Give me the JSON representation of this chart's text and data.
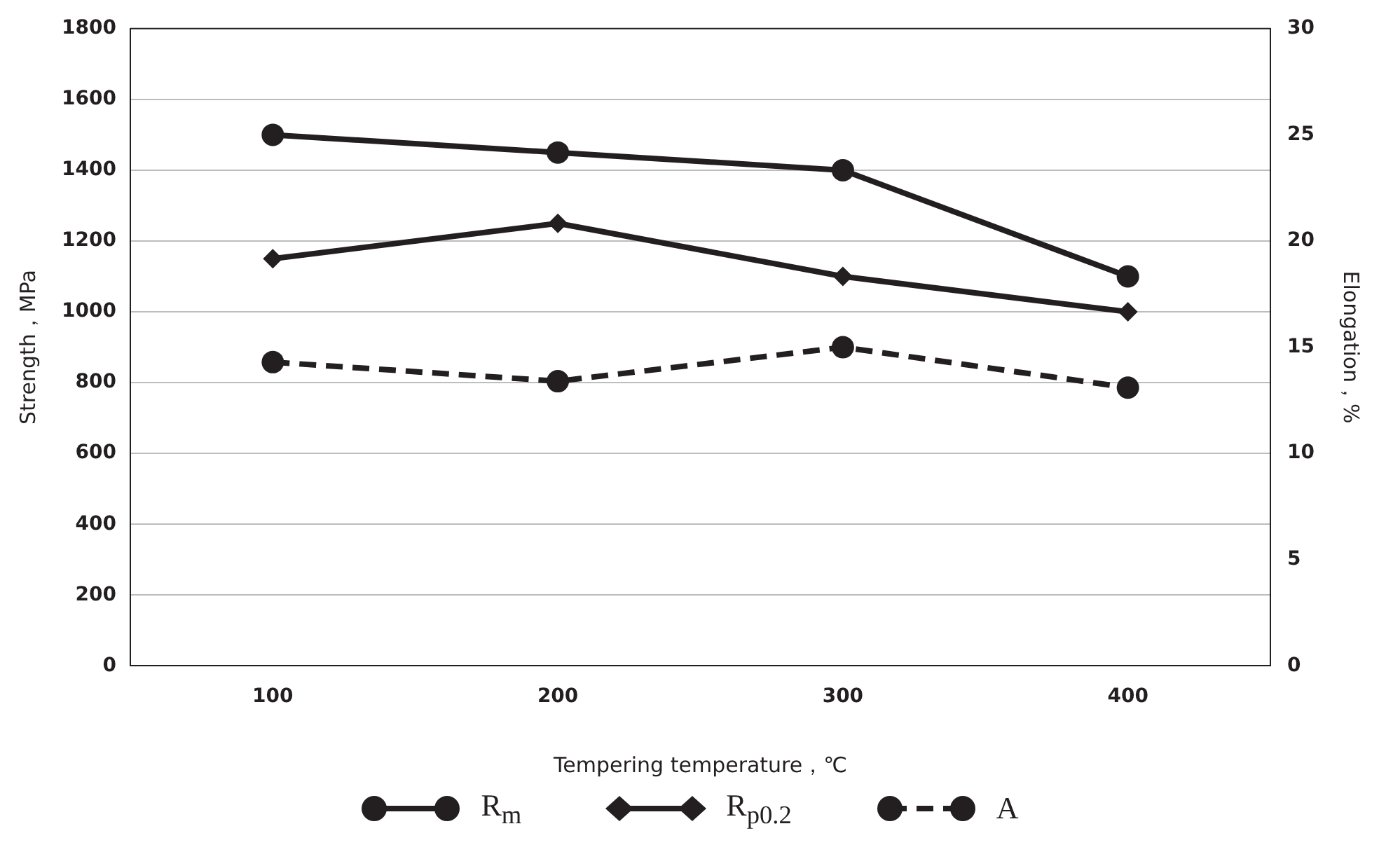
{
  "chart_data": {
    "type": "line",
    "xlabel": "Tempering temperature，℃",
    "ylabel": "Strength，MPa",
    "y2label": "Elongation，%",
    "categories": [
      "100",
      "200",
      "300",
      "400"
    ],
    "series": [
      {
        "name": "R$_{m}$",
        "color": "#231f20",
        "values": [
          1500,
          1450,
          1400,
          1100
        ],
        "marker": "circle",
        "line_style": "solid"
      },
      {
        "name": "R$_{p0.2}$",
        "color": "#231f20",
        "values": [
          1150,
          1250,
          1100,
          1000
        ],
        "marker": "diamond",
        "line_style": "solid"
      },
      {
        "name": "A",
        "color": "#231f20",
        "values": [
          14.3,
          13.4,
          15,
          13.1
        ],
        "marker": "circle",
        "line_style": "dashed",
        "axis": "y2"
      }
    ],
    "ylim": [
      0,
      1800
    ],
    "yticks": [
      0,
      200,
      400,
      600,
      800,
      1000,
      1200,
      1400,
      1600,
      1800
    ],
    "y2lim": [
      0,
      30
    ],
    "y2ticks": [
      0,
      5,
      10,
      15,
      20,
      25,
      30
    ],
    "grid": "y",
    "legend": "bottom"
  }
}
